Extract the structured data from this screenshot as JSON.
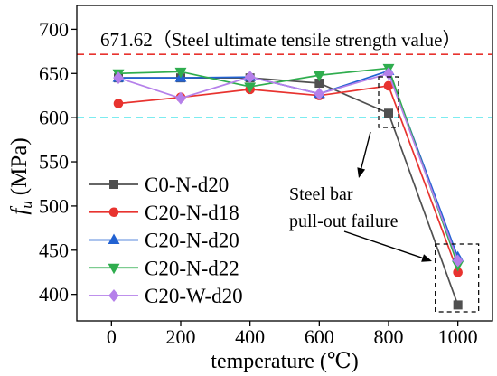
{
  "chart_data": {
    "type": "line",
    "x": [
      20,
      200,
      400,
      600,
      800,
      1000
    ],
    "xticks": [
      0,
      200,
      400,
      600,
      800,
      1000
    ],
    "yticks": [
      400,
      450,
      500,
      550,
      600,
      650,
      700
    ],
    "xlim": [
      -100,
      1100
    ],
    "ylim": [
      370,
      727
    ],
    "xlabel": "temperature (℃)",
    "ylabel": {
      "symbol": "f",
      "subscript": "u",
      "unit": "(MPa)"
    },
    "grid": false,
    "legend_position": "bottom-left",
    "series": [
      {
        "name": "C0-N-d20",
        "color": "#505050",
        "marker": "square",
        "values": [
          645,
          645,
          645,
          639,
          605,
          388
        ]
      },
      {
        "name": "C20-N-d18",
        "color": "#e8332f",
        "marker": "circle",
        "values": [
          616,
          623,
          632,
          625,
          636,
          425
        ]
      },
      {
        "name": "C20-N-d20",
        "color": "#2262d2",
        "marker": "triangle-up",
        "values": [
          645,
          645,
          646,
          627,
          653,
          442
        ]
      },
      {
        "name": "C20-N-d22",
        "color": "#2fad4e",
        "marker": "triangle-down",
        "values": [
          650,
          652,
          635,
          648,
          656,
          433
        ]
      },
      {
        "name": "C20-W-d20",
        "color": "#b580ea",
        "marker": "diamond",
        "values": [
          645,
          622,
          646,
          627,
          650,
          438
        ]
      }
    ],
    "reference_lines": [
      {
        "y": 671.62,
        "color": "#e8332f",
        "linestyle": "dashed",
        "label": "671.62（Steel ultimate tensile strength value）"
      },
      {
        "y": 600,
        "color": "#2fe0e8",
        "linestyle": "dashed"
      }
    ],
    "annotations": [
      {
        "text": [
          "Steel bar",
          "pull-out failure"
        ],
        "highlight_x": [
          800,
          1000
        ]
      }
    ]
  }
}
